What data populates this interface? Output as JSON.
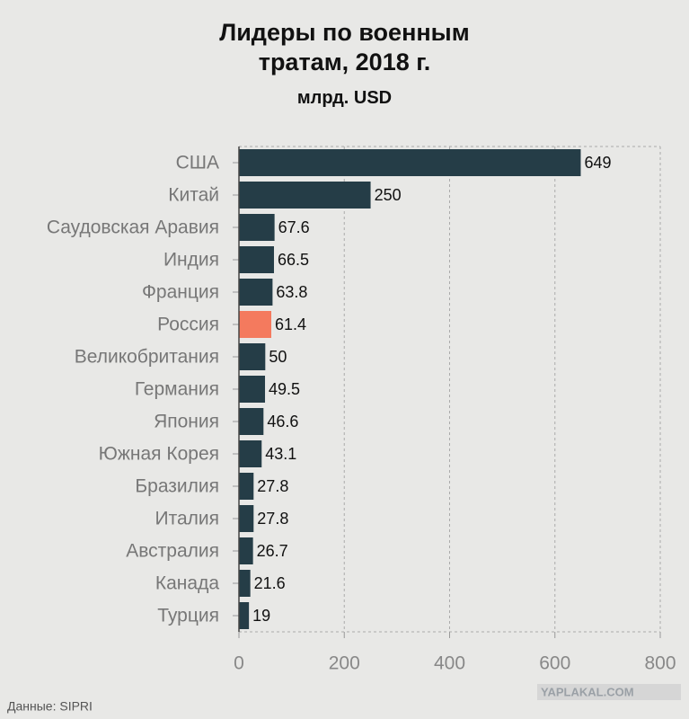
{
  "chart_data": {
    "type": "barh",
    "title": "Лидеры по военным тратам, 2018 г.",
    "subtitle": "млрд. USD",
    "source": "Данные: SIPRI",
    "watermark": "YAPLAKAL.COM",
    "categories": [
      "США",
      "Китай",
      "Саудовская Аравия",
      "Индия",
      "Франция",
      "Россия",
      "Великобритания",
      "Германия",
      "Япония",
      "Южная Корея",
      "Бразилия",
      "Италия",
      "Австралия",
      "Канада",
      "Турция"
    ],
    "values": [
      649,
      250,
      67.6,
      66.5,
      63.8,
      61.4,
      50,
      49.5,
      46.6,
      43.1,
      27.8,
      27.8,
      26.7,
      21.6,
      19
    ],
    "colors": [
      "#253d47",
      "#253d47",
      "#253d47",
      "#253d47",
      "#253d47",
      "#f47a5e",
      "#253d47",
      "#253d47",
      "#253d47",
      "#253d47",
      "#253d47",
      "#253d47",
      "#253d47",
      "#253d47",
      "#253d47"
    ],
    "xlim": [
      0,
      800
    ],
    "xticks": [
      0,
      200,
      400,
      600,
      800
    ],
    "grid": true
  }
}
